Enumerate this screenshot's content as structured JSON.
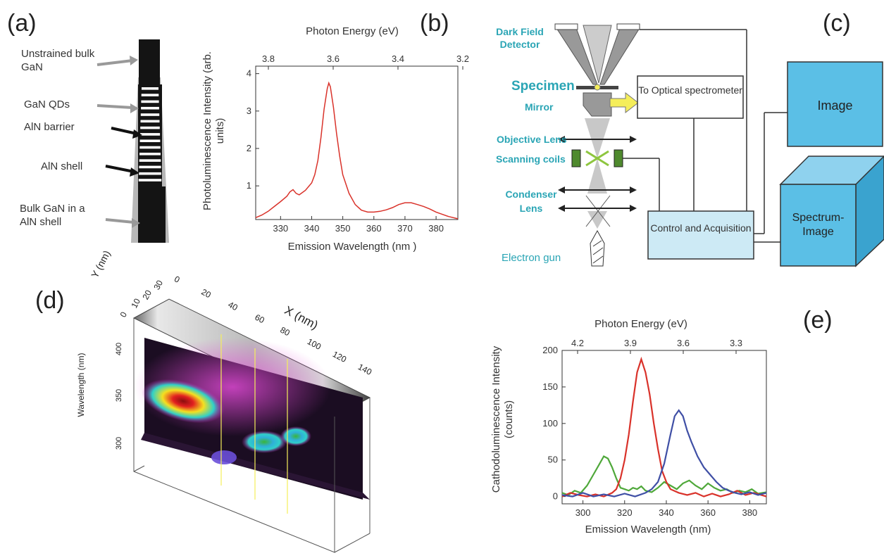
{
  "panels": {
    "a": "(a)",
    "b": "(b)",
    "c": "(c)",
    "d": "(d)",
    "e": "(e)"
  },
  "panel_a": {
    "labels": [
      "Unstrained bulk GaN",
      "GaN QDs",
      "AlN barrier",
      "AlN shell",
      "Bulk GaN in a AlN shell"
    ]
  },
  "panel_c": {
    "dark_field_detector": "Dark Field Detector",
    "specimen": "Specimen",
    "mirror": "Mirror",
    "objective_lens": "Objective Lens",
    "scanning_coils": "Scanning coils",
    "condenser_lens": "Condenser Lens",
    "electron_gun": "Electron gun",
    "to_optical": "To Optical spectrometer",
    "control": "Control and Acquisition",
    "image": "Image",
    "spectrum_image": "Spectrum-Image",
    "colors": {
      "teal": "#2aa5b5",
      "box_blue": "#5bbfe6",
      "light_blue": "#cdeaf5",
      "arrow_yellow": "#f5ee5a"
    }
  },
  "panel_d": {
    "y_axis_label": "Y (nm)",
    "y_ticks": [
      "0",
      "10",
      "20",
      "30"
    ],
    "x_axis_label": "X (nm)",
    "x_ticks": [
      "0",
      "20",
      "40",
      "60",
      "80",
      "100",
      "120",
      "140"
    ],
    "wavelength_label": "Wavelength (nm)",
    "wavelength_ticks": [
      "400",
      "350",
      "300"
    ]
  },
  "chart_data": [
    {
      "type": "line",
      "panel": "b",
      "xlabel": "Emission Wavelength (nm )",
      "ylabel": "Photoluminescence Intensity (arb. units)",
      "top_axis_label": "Photon Energy (eV)",
      "top_ticks": [
        "3.8",
        "3.6",
        "3.4",
        "3.2"
      ],
      "xlim": [
        322,
        387
      ],
      "ylim": [
        0.1,
        4.2
      ],
      "xticks": [
        330,
        340,
        350,
        360,
        370,
        380
      ],
      "yticks": [
        1,
        2,
        3,
        4
      ],
      "series": [
        {
          "color": "#d9322a",
          "x": [
            322,
            324,
            326,
            328,
            330,
            332,
            333,
            334,
            335,
            336,
            338,
            340,
            341,
            342,
            343,
            344,
            345,
            345.5,
            346,
            347,
            348,
            349,
            350,
            352,
            354,
            356,
            358,
            360,
            362,
            364,
            366,
            368,
            370,
            372,
            374,
            376,
            378,
            380,
            382,
            384,
            387
          ],
          "y": [
            0.15,
            0.22,
            0.32,
            0.45,
            0.58,
            0.72,
            0.84,
            0.9,
            0.8,
            0.76,
            0.88,
            1.08,
            1.3,
            1.68,
            2.3,
            3.05,
            3.6,
            3.75,
            3.65,
            3.1,
            2.4,
            1.8,
            1.3,
            0.8,
            0.5,
            0.35,
            0.3,
            0.3,
            0.32,
            0.36,
            0.42,
            0.5,
            0.55,
            0.55,
            0.5,
            0.45,
            0.38,
            0.3,
            0.24,
            0.18,
            0.12
          ]
        }
      ]
    },
    {
      "type": "line",
      "panel": "e",
      "xlabel": "Emission Wavelength (nm)",
      "ylabel": "Cathodoluminescence Intensity (counts)",
      "top_axis_label": "Photon Energy (eV)",
      "top_ticks": [
        "4.2",
        "3.9",
        "3.6",
        "3.3"
      ],
      "xlim": [
        290,
        388
      ],
      "ylim": [
        -10,
        200
      ],
      "xticks": [
        300,
        320,
        340,
        360,
        380
      ],
      "yticks": [
        0,
        50,
        100,
        150,
        200
      ],
      "series": [
        {
          "color": "#4fa83a",
          "x": [
            290,
            293,
            296,
            299,
            302,
            305,
            308,
            310,
            312,
            314,
            316,
            318,
            320,
            322,
            324,
            326,
            328,
            330,
            333,
            336,
            339,
            342,
            345,
            348,
            351,
            354,
            357,
            360,
            363,
            366,
            369,
            372,
            375,
            378,
            381,
            384,
            388
          ],
          "y": [
            5,
            2,
            8,
            5,
            15,
            30,
            45,
            55,
            52,
            40,
            25,
            12,
            10,
            8,
            12,
            10,
            14,
            8,
            6,
            12,
            20,
            15,
            10,
            18,
            22,
            15,
            10,
            18,
            12,
            8,
            10,
            5,
            8,
            6,
            10,
            4,
            6
          ]
        },
        {
          "color": "#d9322a",
          "x": [
            290,
            294,
            298,
            302,
            306,
            310,
            314,
            316,
            318,
            320,
            322,
            324,
            326,
            328,
            330,
            332,
            334,
            336,
            338,
            340,
            342,
            346,
            350,
            354,
            358,
            362,
            366,
            370,
            374,
            378,
            382,
            388
          ],
          "y": [
            0,
            5,
            2,
            0,
            3,
            0,
            5,
            10,
            25,
            50,
            85,
            130,
            170,
            188,
            170,
            140,
            100,
            65,
            35,
            20,
            10,
            5,
            2,
            5,
            0,
            4,
            0,
            3,
            8,
            2,
            5,
            0
          ]
        },
        {
          "color": "#3f4fa5",
          "x": [
            290,
            295,
            300,
            305,
            310,
            315,
            320,
            325,
            330,
            333,
            336,
            339,
            342,
            344,
            346,
            348,
            350,
            352,
            355,
            358,
            361,
            364,
            367,
            370,
            373,
            376,
            380,
            384,
            388
          ],
          "y": [
            2,
            0,
            5,
            0,
            3,
            0,
            4,
            0,
            5,
            10,
            20,
            45,
            85,
            110,
            118,
            110,
            90,
            75,
            55,
            40,
            30,
            20,
            12,
            8,
            5,
            3,
            6,
            2,
            5
          ]
        }
      ]
    }
  ]
}
